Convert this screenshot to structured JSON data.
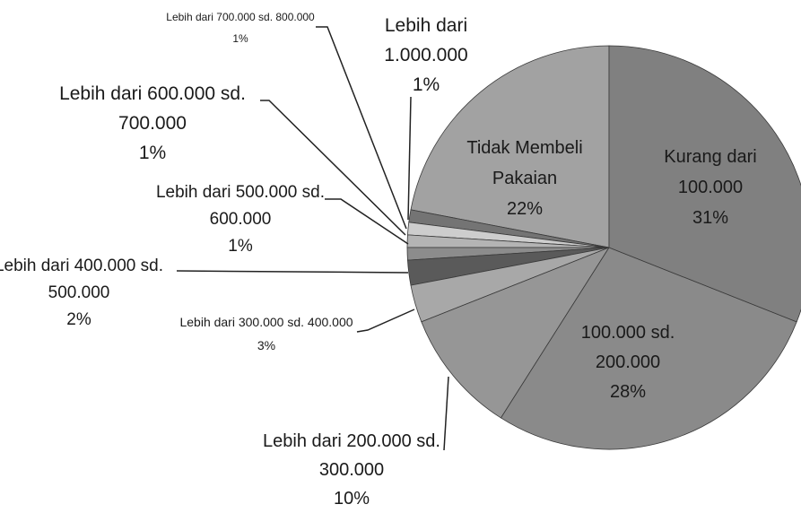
{
  "chart_data": {
    "type": "pie",
    "categories": [
      "Kurang dari 100.000",
      "100.000 sd. 200.000",
      "Lebih dari 200.000 sd. 300.000",
      "Lebih dari 300.000 sd. 400.000",
      "Lebih dari 400.000 sd. 500.000",
      "Lebih dari 500.000 sd. 600.000",
      "Lebih dari 600.000 sd. 700.000",
      "Lebih dari 700.000 sd. 800.000",
      "Lebih dari 1.000.000",
      "Tidak Membeli Pakaian"
    ],
    "values": [
      31,
      28,
      10,
      3,
      2,
      1,
      1,
      1,
      1,
      22
    ],
    "value_labels": [
      "31%",
      "28%",
      "10%",
      "3%",
      "2%",
      "1%",
      "1%",
      "1%",
      "1%",
      "22%"
    ],
    "colors": [
      "#808080",
      "#8a8a8a",
      "#969696",
      "#a8a8a8",
      "#5a5a5a",
      "#8c8c8c",
      "#b4b4b4",
      "#cdcdcd",
      "#747474",
      "#a2a2a2"
    ]
  }
}
